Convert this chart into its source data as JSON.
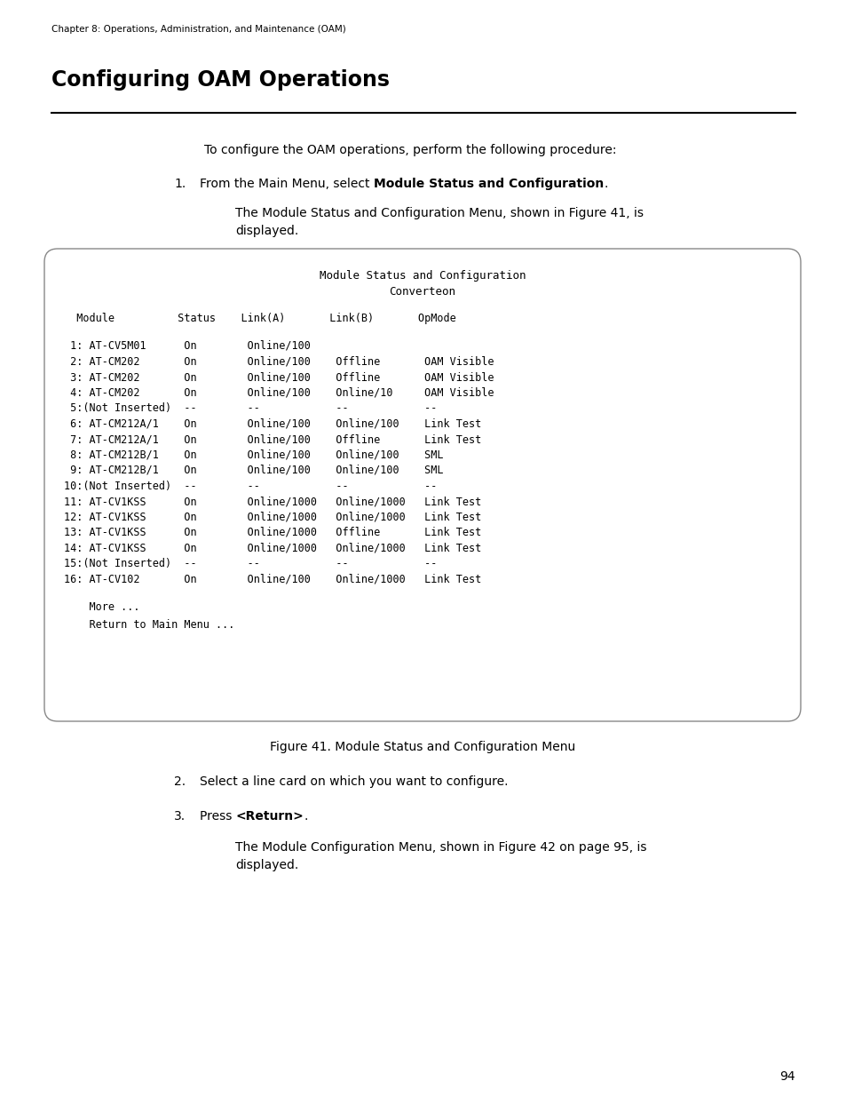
{
  "bg_color": "#ffffff",
  "page_width": 9.54,
  "page_height": 12.35,
  "chapter_header": "Chapter 8: Operations, Administration, and Maintenance (OAM)",
  "page_number": "94",
  "title": "Configuring OAM Operations",
  "intro_text": "To configure the OAM operations, perform the following procedure:",
  "step1_sub": "The Module Status and Configuration Menu, shown in Figure 41, is\ndisplayed.",
  "box_title_line1": "Module Status and Configuration",
  "box_title_line2": "Converteon",
  "box_header": "  Module          Status    Link(A)       Link(B)       OpMode",
  "box_rows": [
    " 1: AT-CV5M01      On        Online/100",
    " 2: AT-CM202       On        Online/100    Offline       OAM Visible",
    " 3: AT-CM202       On        Online/100    Offline       OAM Visible",
    " 4: AT-CM202       On        Online/100    Online/10     OAM Visible",
    " 5:(Not Inserted)  --        --            --            --",
    " 6: AT-CM212A/1    On        Online/100    Online/100    Link Test",
    " 7: AT-CM212A/1    On        Online/100    Offline       Link Test",
    " 8: AT-CM212B/1    On        Online/100    Online/100    SML",
    " 9: AT-CM212B/1    On        Online/100    Online/100    SML",
    "10:(Not Inserted)  --        --            --            --",
    "11: AT-CV1KSS      On        Online/1000   Online/1000   Link Test",
    "12: AT-CV1KSS      On        Online/1000   Online/1000   Link Test",
    "13: AT-CV1KSS      On        Online/1000   Offline       Link Test",
    "14: AT-CV1KSS      On        Online/1000   Online/1000   Link Test",
    "15:(Not Inserted)  --        --            --            --",
    "16: AT-CV102       On        Online/100    Online/1000   Link Test"
  ],
  "box_footer1": "    More ...",
  "box_footer2": "    Return to Main Menu ...",
  "figure_caption": "Figure 41. Module Status and Configuration Menu",
  "step2_text": "Select a line card on which you want to configure.",
  "step3_sub": "The Module Configuration Menu, shown in Figure 42 on page 95, is\ndisplayed.",
  "mono_font": "DejaVu Sans Mono",
  "sans_font": "DejaVu Sans"
}
